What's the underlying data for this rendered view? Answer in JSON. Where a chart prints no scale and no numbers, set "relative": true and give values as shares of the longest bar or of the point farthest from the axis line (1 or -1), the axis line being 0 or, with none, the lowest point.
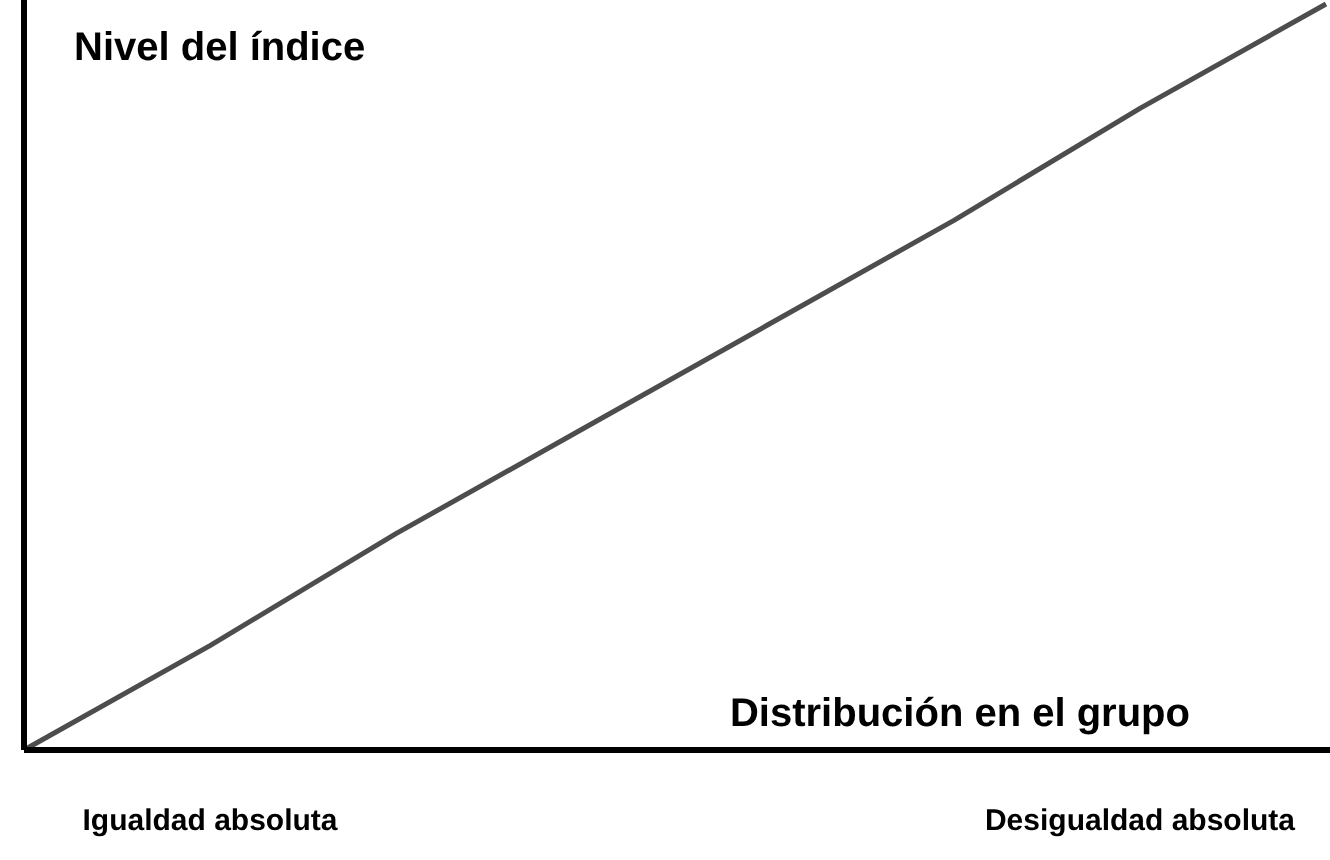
{
  "chart_data": {
    "type": "line",
    "relative": true,
    "xlabel": "Distribución en el grupo",
    "ylabel": "Nivel del índice",
    "categories": [
      null,
      "Igualdad absoluta",
      null,
      null,
      null,
      null,
      "Desigualdad absoluta",
      null
    ],
    "series": [
      {
        "color": "#4d4d4d",
        "values": [
          0,
          0.14,
          0.29,
          0.43,
          0.57,
          0.71,
          0.86,
          1
        ]
      }
    ],
    "marker": "none",
    "line_style": "solid"
  }
}
